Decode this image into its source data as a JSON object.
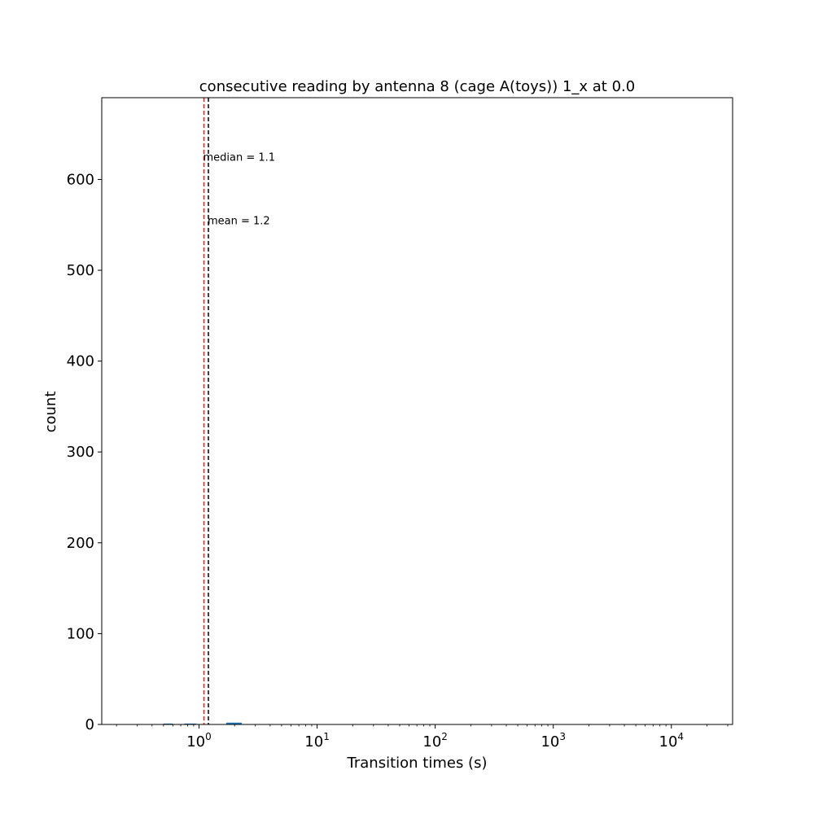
{
  "chart_data": {
    "type": "bar",
    "title": "consecutive reading by antenna 8 (cage A(toys)) 1_x at 0.0",
    "xlabel": "Transition times (s)",
    "ylabel": "count",
    "x_scale": "log",
    "xlim": [
      0.15,
      33000
    ],
    "ylim": [
      0,
      690
    ],
    "grid": false,
    "yticks": [
      {
        "value": 0,
        "label": "0"
      },
      {
        "value": 100,
        "label": "100"
      },
      {
        "value": 200,
        "label": "200"
      },
      {
        "value": 300,
        "label": "300"
      },
      {
        "value": 400,
        "label": "400"
      },
      {
        "value": 500,
        "label": "500"
      },
      {
        "value": 600,
        "label": "600"
      }
    ],
    "xticks": [
      {
        "value": 1,
        "base": "10",
        "exp": "0"
      },
      {
        "value": 10,
        "base": "10",
        "exp": "1"
      },
      {
        "value": 100,
        "base": "10",
        "exp": "2"
      },
      {
        "value": 1000,
        "base": "10",
        "exp": "3"
      },
      {
        "value": 10000,
        "base": "10",
        "exp": "4"
      }
    ],
    "bins": [
      {
        "x0": 0.5,
        "x1": 0.6,
        "count": 1
      },
      {
        "x0": 0.75,
        "x1": 0.95,
        "count": 1
      },
      {
        "x0": 1.7,
        "x1": 2.3,
        "count": 2
      }
    ],
    "bar_color": "#1f77b4",
    "markers": [
      {
        "kind": "median",
        "value": 1.1,
        "color": "#d62728",
        "label": "median =  1.1",
        "label_y": 625
      },
      {
        "kind": "mean",
        "value": 1.2,
        "color": "#000000",
        "label": "mean =  1.2",
        "label_y": 555
      }
    ]
  }
}
